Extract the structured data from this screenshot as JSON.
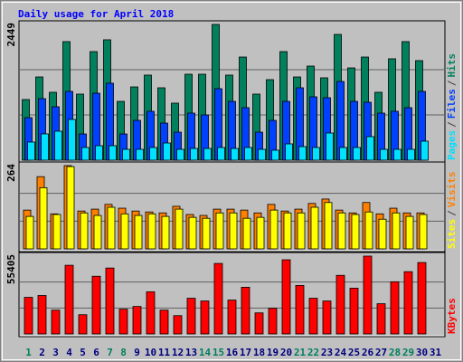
{
  "chart_data": [
    {
      "type": "bar",
      "title": "Daily usage for April 2018",
      "ylim": [
        0,
        2449
      ],
      "yticks": [
        2449
      ],
      "legend_separator": "/",
      "series": [
        {
          "name": "Hits",
          "color": "#00805c",
          "values": [
            1094,
            1502,
            1225,
            2139,
            1192,
            1959,
            2172,
            1061,
            1322,
            1535,
            1306,
            1029,
            1551,
            1551,
            2449,
            1535,
            1861,
            1192,
            1453,
            1959,
            1502,
            1698,
            1486,
            2269,
            1665,
            1861,
            1225,
            1829,
            2139,
            1796,
            null
          ]
        },
        {
          "name": "Files",
          "color": "#0040ff",
          "values": [
            767,
            1110,
            963,
            1241,
            473,
            1208,
            1388,
            473,
            718,
            882,
            669,
            506,
            849,
            816,
            1290,
            1061,
            947,
            506,
            718,
            1061,
            1306,
            1143,
            1127,
            1420,
            1061,
            1045,
            849,
            882,
            947,
            1241,
            null
          ]
        },
        {
          "name": "Pages",
          "color": "#00e0ff",
          "values": [
            327,
            474,
            523,
            735,
            229,
            261,
            261,
            196,
            196,
            229,
            310,
            196,
            212,
            212,
            229,
            212,
            229,
            196,
            180,
            294,
            245,
            229,
            490,
            229,
            229,
            425,
            196,
            196,
            196,
            343,
            null
          ]
        }
      ]
    },
    {
      "type": "bar",
      "ylim": [
        0,
        264
      ],
      "yticks": [
        264
      ],
      "legend_separator": "/",
      "series": [
        {
          "name": "Visits",
          "color": "#ff8000",
          "values": [
            123,
            229,
            111,
            264,
            120,
            126,
            141,
            129,
            120,
            117,
            114,
            135,
            109,
            106,
            126,
            126,
            123,
            114,
            141,
            120,
            126,
            144,
            158,
            123,
            114,
            147,
            111,
            129,
            114,
            114,
            null
          ]
        },
        {
          "name": "Sites",
          "color": "#ffff00",
          "values": [
            103,
            194,
            109,
            261,
            114,
            106,
            132,
            111,
            106,
            111,
            103,
            126,
            100,
            97,
            114,
            114,
            97,
            100,
            123,
            114,
            114,
            132,
            147,
            114,
            109,
            117,
            94,
            114,
            103,
            109,
            null
          ]
        }
      ]
    },
    {
      "type": "bar",
      "ylim": [
        0,
        55405
      ],
      "yticks": [
        55405
      ],
      "categories": [
        "1",
        "2",
        "3",
        "4",
        "5",
        "6",
        "7",
        "8",
        "9",
        "10",
        "11",
        "12",
        "13",
        "14",
        "15",
        "16",
        "17",
        "18",
        "19",
        "20",
        "21",
        "22",
        "23",
        "24",
        "25",
        "26",
        "27",
        "28",
        "29",
        "30",
        "31"
      ],
      "category_colors": [
        "#00805c",
        "#000080",
        "#000080",
        "#000080",
        "#000080",
        "#000080",
        "#00805c",
        "#00805c",
        "#000080",
        "#000080",
        "#000080",
        "#000080",
        "#000080",
        "#00805c",
        "#00805c",
        "#000080",
        "#000080",
        "#000080",
        "#000080",
        "#000080",
        "#00805c",
        "#00805c",
        "#000080",
        "#000080",
        "#000080",
        "#000080",
        "#000080",
        "#00805c",
        "#00805c",
        "#000080",
        "#000080"
      ],
      "series": [
        {
          "name": "KBytes",
          "color": "#ff0000",
          "values": [
            26073,
            27376,
            16947,
            48886,
            13688,
            41064,
            46931,
            17599,
            19554,
            29983,
            16947,
            13036,
            25421,
            23465,
            50189,
            24117,
            33242,
            14992,
            18251,
            52797,
            34546,
            25421,
            23465,
            41716,
            32590,
            55405,
            21510,
            37153,
            44322,
            50841,
            null
          ]
        }
      ]
    }
  ]
}
